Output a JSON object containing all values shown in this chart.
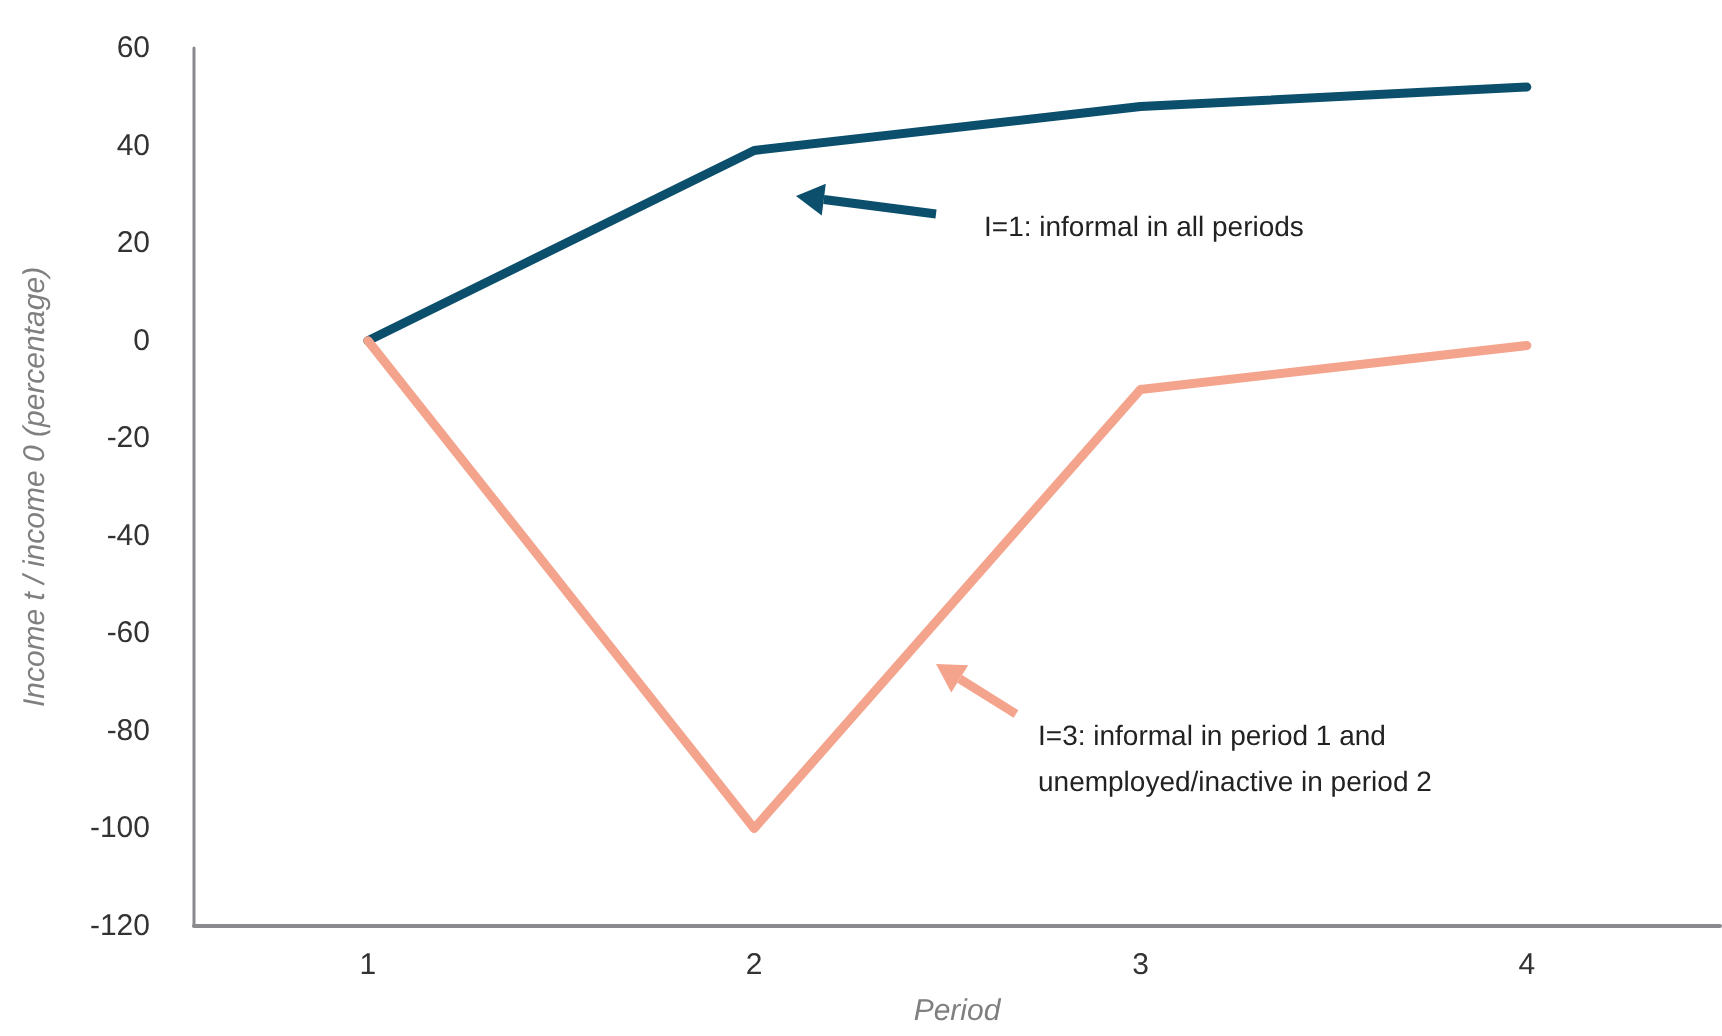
{
  "chart_data": {
    "type": "line",
    "xlabel": "Period",
    "ylabel": "Income t / income 0 (percentage)",
    "x": [
      1,
      2,
      3,
      4
    ],
    "series": [
      {
        "color": "#0b4f6c",
        "values": [
          0,
          39,
          48,
          52
        ]
      },
      {
        "color": "#f4a48c",
        "values": [
          0,
          -100,
          -10,
          -1
        ]
      }
    ],
    "xlim": [
      0.55,
      4.5
    ],
    "xticks": [
      1,
      2,
      3,
      4
    ],
    "ylim": [
      -120,
      60
    ],
    "yticks": [
      -120,
      -100,
      -80,
      -60,
      -40,
      -20,
      0,
      20,
      40,
      60
    ],
    "grid": false,
    "marker": "none",
    "line_style": "solid",
    "annotations": [
      "I=1: informal in all periods",
      "I=3: informal in period 1 and\nunemployed/inactive in period 2"
    ]
  }
}
